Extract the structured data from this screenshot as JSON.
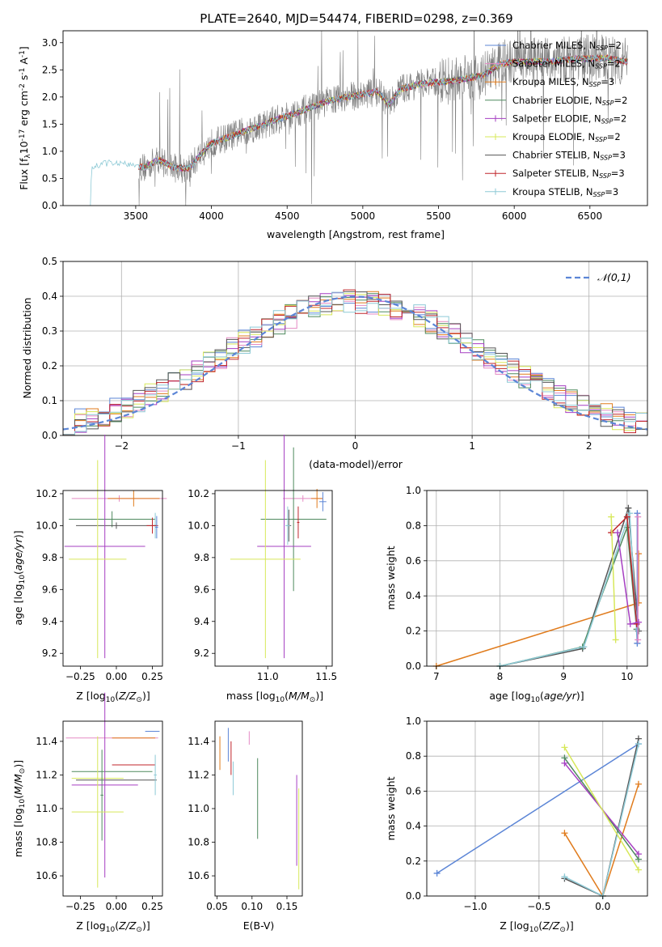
{
  "figure": {
    "title": "PLATE=2640, MJD=54474, FIBERID=0298, z=0.369"
  },
  "legend_models": [
    {
      "label": "Chabrier MILES, N",
      "sub": "SSP",
      "tail": "=2",
      "color": "#5b85d6"
    },
    {
      "label": "Salpeter MILES, N",
      "sub": "SSP",
      "tail": "=2",
      "color": "#e58ac4"
    },
    {
      "label": "Kroupa MILES, N",
      "sub": "SSP",
      "tail": "=3",
      "color": "#e07b1c"
    },
    {
      "label": "Chabrier ELODIE, N",
      "sub": "SSP",
      "tail": "=2",
      "color": "#4f8a5f"
    },
    {
      "label": "Salpeter ELODIE, N",
      "sub": "SSP",
      "tail": "=2",
      "color": "#a63fc2"
    },
    {
      "label": "Kroupa ELODIE, N",
      "sub": "SSP",
      "tail": "=2",
      "color": "#d7e85a"
    },
    {
      "label": "Chabrier STELIB, N",
      "sub": "SSP",
      "tail": "=3",
      "color": "#555555"
    },
    {
      "label": "Salpeter STELIB, N",
      "sub": "SSP",
      "tail": "=3",
      "color": "#c0262b"
    },
    {
      "label": "Kroupa STELIB, N",
      "sub": "SSP",
      "tail": "=3",
      "color": "#8ecad6"
    }
  ],
  "chart_data": [
    {
      "id": "spectrum",
      "type": "line",
      "xlabel": "wavelength [Angstrom, rest frame]",
      "ylabel_parts": [
        "Flux [f",
        "λ",
        "10",
        "-17",
        " erg cm",
        "-2",
        " s",
        "-1",
        " A",
        "-1",
        "]"
      ],
      "xlim": [
        3020,
        6880
      ],
      "ylim": [
        0,
        3.22
      ],
      "xticks": [
        3500,
        4000,
        4500,
        5000,
        5500,
        6000,
        6500
      ],
      "yticks": [
        0.0,
        0.5,
        1.0,
        1.5,
        2.0,
        2.5,
        3.0
      ],
      "data_color": "#808080",
      "model_color": "#8ecad6",
      "model_anchor_points": [
        [
          3200,
          0.0
        ],
        [
          3210,
          0.72
        ],
        [
          3300,
          0.78
        ],
        [
          3400,
          0.8
        ],
        [
          3480,
          0.74
        ],
        [
          3560,
          0.7
        ],
        [
          3650,
          0.85
        ],
        [
          3750,
          0.7
        ],
        [
          3850,
          0.68
        ],
        [
          3930,
          0.95
        ],
        [
          4000,
          1.15
        ],
        [
          4100,
          1.25
        ],
        [
          4200,
          1.35
        ],
        [
          4300,
          1.45
        ],
        [
          4400,
          1.55
        ],
        [
          4500,
          1.65
        ],
        [
          4600,
          1.75
        ],
        [
          4700,
          1.85
        ],
        [
          4800,
          1.95
        ],
        [
          4900,
          2.0
        ],
        [
          5000,
          2.05
        ],
        [
          5100,
          2.1
        ],
        [
          5170,
          1.85
        ],
        [
          5250,
          2.15
        ],
        [
          5400,
          2.25
        ],
        [
          5600,
          2.3
        ],
        [
          5800,
          2.4
        ],
        [
          5900,
          2.6
        ],
        [
          6000,
          2.65
        ],
        [
          6200,
          2.65
        ],
        [
          6400,
          2.7
        ],
        [
          6600,
          2.72
        ],
        [
          6750,
          2.65
        ]
      ]
    },
    {
      "id": "residuals",
      "type": "histogram",
      "xlabel": "(data-model)/error",
      "ylabel": "Normed distribution",
      "xlim": [
        -2.5,
        2.5
      ],
      "ylim": [
        0,
        0.5
      ],
      "xticks": [
        -2,
        -1,
        0,
        1,
        2
      ],
      "yticks": [
        0.0,
        0.1,
        0.2,
        0.3,
        0.4,
        0.5
      ],
      "legend_label": "𝒩(0,1)",
      "gaussian_color": "#5b85d6",
      "bin_width": 0.1
    },
    {
      "id": "age-vs-Z",
      "type": "errorbar",
      "xlabel": "Z [log10(Z/Z⊙)]",
      "xlabel_parts": [
        "Z [log",
        "10",
        "(",
        "Z/Z",
        "⊙",
        ")]"
      ],
      "ylabel_parts": [
        "age  [log",
        "10",
        "(",
        "age/yr",
        ")]"
      ],
      "xlim": [
        -0.37,
        0.32
      ],
      "ylim": [
        9.12,
        10.22
      ],
      "xticks": [
        -0.25,
        0.0,
        0.25
      ],
      "xtick_labels": [
        "−0.25",
        "0.00",
        "0.25"
      ],
      "yticks": [
        9.2,
        9.4,
        9.6,
        9.8,
        10.0,
        10.2
      ],
      "series": [
        {
          "x": 0.02,
          "xerr": 0.33,
          "y": 10.17,
          "yerr": 0.02,
          "color": "#e58ac4"
        },
        {
          "x": 0.12,
          "xerr": 0.18,
          "y": 10.17,
          "yerr": 0.05,
          "color": "#e07b1c"
        },
        {
          "x": -0.03,
          "xerr": 0.3,
          "y": 10.04,
          "yerr": 0.05,
          "color": "#4f8a5f"
        },
        {
          "x": 0.27,
          "xerr": 0.02,
          "y": 10.0,
          "yerr": 0.08,
          "color": "#8ecad6"
        },
        {
          "x": 0.0,
          "xerr": 0.28,
          "y": 10.0,
          "yerr": 0.02,
          "color": "#555555"
        },
        {
          "x": 0.25,
          "xerr": 0.04,
          "y": 10.0,
          "yerr": 0.05,
          "color": "#c0262b"
        },
        {
          "x": 0.28,
          "xerr": 0.01,
          "y": 9.99,
          "yerr": 0.07,
          "color": "#5b85d6"
        },
        {
          "x": -0.08,
          "xerr": 0.28,
          "y": 9.87,
          "yerr": 0.7,
          "color": "#a63fc2"
        },
        {
          "x": -0.13,
          "xerr": 0.2,
          "y": 9.79,
          "yerr": 0.62,
          "color": "#d7e85a"
        }
      ]
    },
    {
      "id": "age-vs-mass",
      "type": "errorbar",
      "xlabel_parts": [
        "mass [log",
        "10",
        "(",
        "M/M",
        "⊙",
        ")]"
      ],
      "xlim": [
        10.55,
        11.55
      ],
      "ylim": [
        9.12,
        10.22
      ],
      "xticks": [
        10.5,
        11.0,
        11.5
      ],
      "yticks": [
        9.2,
        9.4,
        9.6,
        9.8,
        10.0,
        10.2
      ],
      "series": [
        {
          "x": 11.3,
          "xerr": 0.17,
          "y": 10.17,
          "yerr": 0.02,
          "color": "#e58ac4"
        },
        {
          "x": 11.42,
          "xerr": 0.05,
          "y": 10.17,
          "yerr": 0.06,
          "color": "#e07b1c"
        },
        {
          "x": 11.47,
          "xerr": 0.03,
          "y": 10.15,
          "yerr": 0.06,
          "color": "#5b85d6"
        },
        {
          "x": 11.22,
          "xerr": 0.28,
          "y": 10.04,
          "yerr": 0.45,
          "color": "#4f8a5f"
        },
        {
          "x": 11.26,
          "xerr": 0.01,
          "y": 10.02,
          "yerr": 0.1,
          "color": "#c0262b"
        },
        {
          "x": 11.18,
          "xerr": 0.02,
          "y": 10.0,
          "yerr": 0.1,
          "color": "#555555"
        },
        {
          "x": 11.17,
          "xerr": 0.02,
          "y": 10.0,
          "yerr": 0.12,
          "color": "#8ecad6"
        },
        {
          "x": 11.14,
          "xerr": 0.23,
          "y": 9.87,
          "yerr": 0.7,
          "color": "#a63fc2"
        },
        {
          "x": 10.98,
          "xerr": 0.3,
          "y": 9.79,
          "yerr": 0.62,
          "color": "#d7e85a"
        }
      ]
    },
    {
      "id": "weight-vs-age",
      "type": "line",
      "xlabel_parts": [
        "age  [log",
        "10",
        "(",
        "age/yr",
        ")]"
      ],
      "ylabel": "mass weight",
      "xlim": [
        6.85,
        10.32
      ],
      "ylim": [
        0,
        1.0
      ],
      "xticks": [
        7,
        8,
        9,
        10
      ],
      "yticks": [
        0.0,
        0.2,
        0.4,
        0.6,
        0.8,
        1.0
      ],
      "series": [
        {
          "color": "#e07b1c",
          "x": [
            7.0,
            10.18,
            10.18
          ],
          "y": [
            0.0,
            0.36,
            0.64
          ]
        },
        {
          "color": "#555555",
          "x": [
            8.0,
            9.3,
            10.02,
            10.18
          ],
          "y": [
            0.0,
            0.1,
            0.9,
            0.2
          ]
        },
        {
          "color": "#4f8a5f",
          "x": [
            8.0,
            9.3,
            10.0,
            10.15
          ],
          "y": [
            0.0,
            0.11,
            0.79,
            0.21
          ]
        },
        {
          "color": "#8ecad6",
          "x": [
            8.0,
            9.32,
            10.04,
            10.16
          ],
          "y": [
            0.0,
            0.11,
            0.87,
            0.13
          ]
        },
        {
          "color": "#5b85d6",
          "x": [
            10.16,
            10.16
          ],
          "y": [
            0.87,
            0.13
          ]
        },
        {
          "color": "#e58ac4",
          "x": [
            10.17,
            10.17
          ],
          "y": [
            0.85,
            0.15
          ]
        },
        {
          "color": "#c0262b",
          "x": [
            9.75,
            10.0,
            10.15
          ],
          "y": [
            0.76,
            0.85,
            0.24
          ]
        },
        {
          "color": "#a63fc2",
          "x": [
            9.85,
            10.05,
            10.18
          ],
          "y": [
            0.76,
            0.24,
            0.25
          ]
        },
        {
          "color": "#d7e85a",
          "x": [
            9.75,
            9.82
          ],
          "y": [
            0.85,
            0.15
          ]
        }
      ]
    },
    {
      "id": "mass-vs-Z",
      "type": "errorbar",
      "xlabel_parts": [
        "Z [log",
        "10",
        "(",
        "Z/Z",
        "⊙",
        ")]"
      ],
      "ylabel_parts": [
        "mass [log",
        "10",
        "(",
        "M/M",
        "⊙",
        ")]"
      ],
      "xlim": [
        -0.37,
        0.32
      ],
      "ylim": [
        10.48,
        11.52
      ],
      "xticks": [
        -0.25,
        0.0,
        0.25
      ],
      "xtick_labels": [
        "−0.25",
        "0.00",
        "0.25"
      ],
      "yticks": [
        10.6,
        10.8,
        11.0,
        11.2,
        11.4
      ],
      "series": [
        {
          "x": 0.25,
          "xerr": 0.05,
          "y": 11.46,
          "yerr": 0.0,
          "color": "#5b85d6"
        },
        {
          "x": -0.03,
          "xerr": 0.32,
          "y": 11.42,
          "yerr": 0.0,
          "color": "#e58ac4"
        },
        {
          "x": 0.12,
          "xerr": 0.15,
          "y": 11.42,
          "yerr": 0.0,
          "color": "#e07b1c"
        },
        {
          "x": 0.12,
          "xerr": 0.15,
          "y": 11.26,
          "yerr": 0.0,
          "color": "#c0262b"
        },
        {
          "x": -0.03,
          "xerr": 0.28,
          "y": 11.22,
          "yerr": 0.0,
          "color": "#4f8a5f"
        },
        {
          "x": -0.13,
          "xerr": 0.18,
          "y": 11.18,
          "yerr": 0.0,
          "color": "#d7e85a"
        },
        {
          "x": 0.0,
          "xerr": 0.28,
          "y": 11.17,
          "yerr": 0.0,
          "color": "#555555"
        },
        {
          "x": 0.27,
          "xerr": 0.01,
          "y": 11.2,
          "yerr": 0.12,
          "color": "#8ecad6"
        },
        {
          "x": -0.1,
          "xerr": 0.01,
          "y": 11.08,
          "yerr": 0.27,
          "color": "#4f8a5f"
        },
        {
          "x": -0.08,
          "xerr": 0.23,
          "y": 11.14,
          "yerr": 0.55,
          "color": "#a63fc2"
        },
        {
          "x": -0.13,
          "xerr": 0.18,
          "y": 10.98,
          "yerr": 0.45,
          "color": "#d7e85a"
        }
      ]
    },
    {
      "id": "mass-vs-ebv",
      "type": "errorbar",
      "xlabel": "E(B-V)",
      "xlim": [
        0.047,
        0.172
      ],
      "ylim": [
        10.48,
        11.52
      ],
      "xticks": [
        0.05,
        0.1,
        0.15
      ],
      "xtick_labels": [
        "0.05",
        "0.10",
        "0.15"
      ],
      "yticks": [
        10.6,
        10.8,
        11.0,
        11.2,
        11.4
      ],
      "series": [
        {
          "x": 0.054,
          "y": 11.33,
          "yerr": 0.1,
          "color": "#e07b1c"
        },
        {
          "x": 0.066,
          "y": 11.38,
          "yerr": 0.1,
          "color": "#5b85d6"
        },
        {
          "x": 0.07,
          "y": 11.3,
          "yerr": 0.1,
          "color": "#c0262b"
        },
        {
          "x": 0.073,
          "y": 11.18,
          "yerr": 0.1,
          "color": "#8ecad6"
        },
        {
          "x": 0.096,
          "y": 11.42,
          "yerr": 0.04,
          "color": "#e58ac4"
        },
        {
          "x": 0.108,
          "y": 11.06,
          "yerr": 0.24,
          "color": "#4f8a5f"
        },
        {
          "x": 0.164,
          "y": 10.93,
          "yerr": 0.27,
          "color": "#a63fc2"
        },
        {
          "x": 0.167,
          "y": 10.82,
          "yerr": 0.3,
          "color": "#d7e85a"
        }
      ]
    },
    {
      "id": "weight-vs-Z",
      "type": "line",
      "xlabel_parts": [
        "Z [log",
        "10",
        "(",
        "Z/Z",
        "⊙",
        ")]"
      ],
      "ylabel": "mass weight",
      "xlim": [
        -1.38,
        0.35
      ],
      "ylim": [
        0,
        1.0
      ],
      "xticks": [
        -1.0,
        -0.5,
        0.0
      ],
      "xtick_labels": [
        "−1.0",
        "−0.5",
        "0.0"
      ],
      "yticks": [
        0.0,
        0.2,
        0.4,
        0.6,
        0.8,
        1.0
      ],
      "series": [
        {
          "color": "#5b85d6",
          "x": [
            -1.3,
            0.28
          ],
          "y": [
            0.13,
            0.87
          ]
        },
        {
          "color": "#e07b1c",
          "x": [
            -0.3,
            0.0,
            0.28
          ],
          "y": [
            0.36,
            0.0,
            0.64
          ]
        },
        {
          "color": "#555555",
          "x": [
            -0.3,
            0.0,
            0.28
          ],
          "y": [
            0.1,
            0.0,
            0.9
          ]
        },
        {
          "color": "#8ecad6",
          "x": [
            -0.3,
            0.0,
            0.28
          ],
          "y": [
            0.11,
            0.0,
            0.87
          ]
        },
        {
          "color": "#4f8a5f",
          "x": [
            -0.3,
            0.28
          ],
          "y": [
            0.79,
            0.21
          ]
        },
        {
          "color": "#a63fc2",
          "x": [
            -0.3,
            0.28
          ],
          "y": [
            0.76,
            0.24
          ]
        },
        {
          "color": "#d7e85a",
          "x": [
            -0.3,
            0.28
          ],
          "y": [
            0.85,
            0.15
          ]
        }
      ]
    }
  ]
}
